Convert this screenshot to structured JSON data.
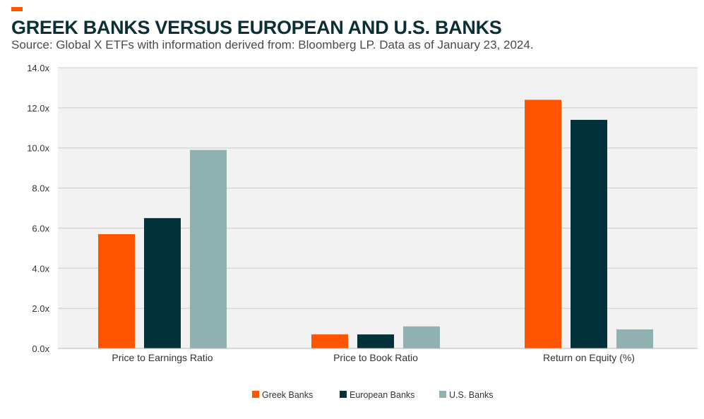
{
  "header": {
    "title": "GREEK BANKS VERSUS EUROPEAN AND U.S. BANKS",
    "subtitle": "Source: Global X ETFs with information derived from: Bloomberg LP. Data as of January 23, 2024.",
    "accent_color": "#ff5500"
  },
  "chart_data": {
    "type": "bar",
    "categories": [
      "Price to Earnings Ratio",
      "Price to Book Ratio",
      "Return on Equity (%)"
    ],
    "series": [
      {
        "name": "Greek Banks",
        "color": "#ff5500",
        "values": [
          5.7,
          0.7,
          12.4
        ]
      },
      {
        "name": "European Banks",
        "color": "#03313a",
        "values": [
          6.5,
          0.7,
          11.4
        ]
      },
      {
        "name": "U.S. Banks",
        "color": "#8fb1b1",
        "values": [
          9.9,
          1.1,
          0.95
        ]
      }
    ],
    "yticks": [
      "0.0x",
      "2.0x",
      "4.0x",
      "6.0x",
      "8.0x",
      "10.0x",
      "12.0x",
      "14.0x"
    ],
    "ylim": [
      0,
      14
    ],
    "grid": true,
    "plot_background": "#f2f2f2",
    "grid_color": "#cccccc",
    "legend_position": "bottom"
  }
}
